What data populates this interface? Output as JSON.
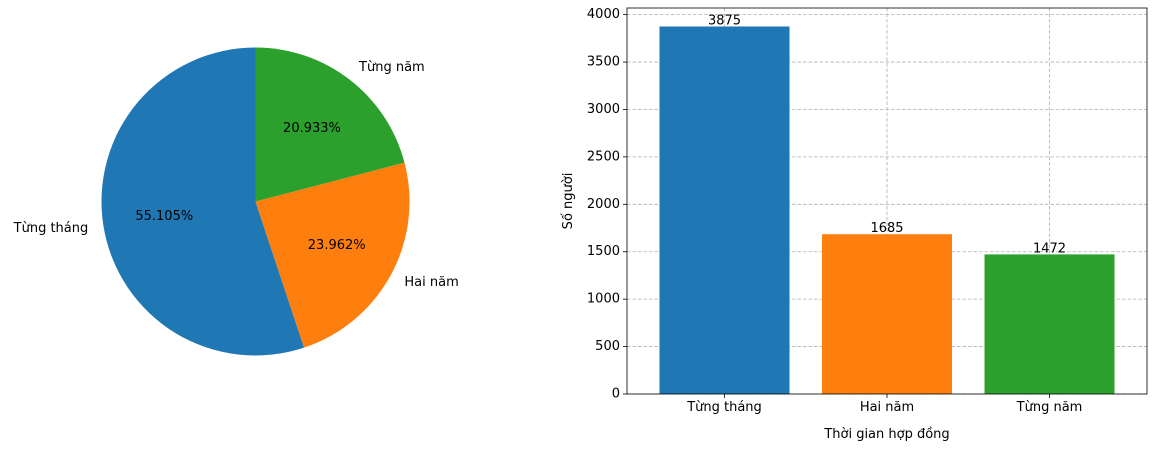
{
  "colors": {
    "blue": "#1f77b4",
    "orange": "#ff7f0e",
    "green": "#2ca02c",
    "grid": "#b0b0b0"
  },
  "chart_data": [
    {
      "type": "pie",
      "categories": [
        "Từng tháng",
        "Hai năm",
        "Từng năm"
      ],
      "values": [
        55.105,
        23.962,
        20.933
      ],
      "labels": [
        "55.105%",
        "23.962%",
        "20.933%"
      ],
      "colors": [
        "#1f77b4",
        "#ff7f0e",
        "#2ca02c"
      ],
      "start_angle": 90,
      "direction": "counterclockwise"
    },
    {
      "type": "bar",
      "categories": [
        "Từng tháng",
        "Hai năm",
        "Từng năm"
      ],
      "values": [
        3875,
        1685,
        1472
      ],
      "labels": [
        "3875",
        "1685",
        "1472"
      ],
      "colors": [
        "#1f77b4",
        "#ff7f0e",
        "#2ca02c"
      ],
      "xlabel": "Thời gian hợp đồng",
      "ylabel": "Số người",
      "ylim": [
        0,
        4070
      ],
      "yticks": [
        0,
        500,
        1000,
        1500,
        2000,
        2500,
        3000,
        3500,
        4000
      ],
      "grid": true
    }
  ]
}
